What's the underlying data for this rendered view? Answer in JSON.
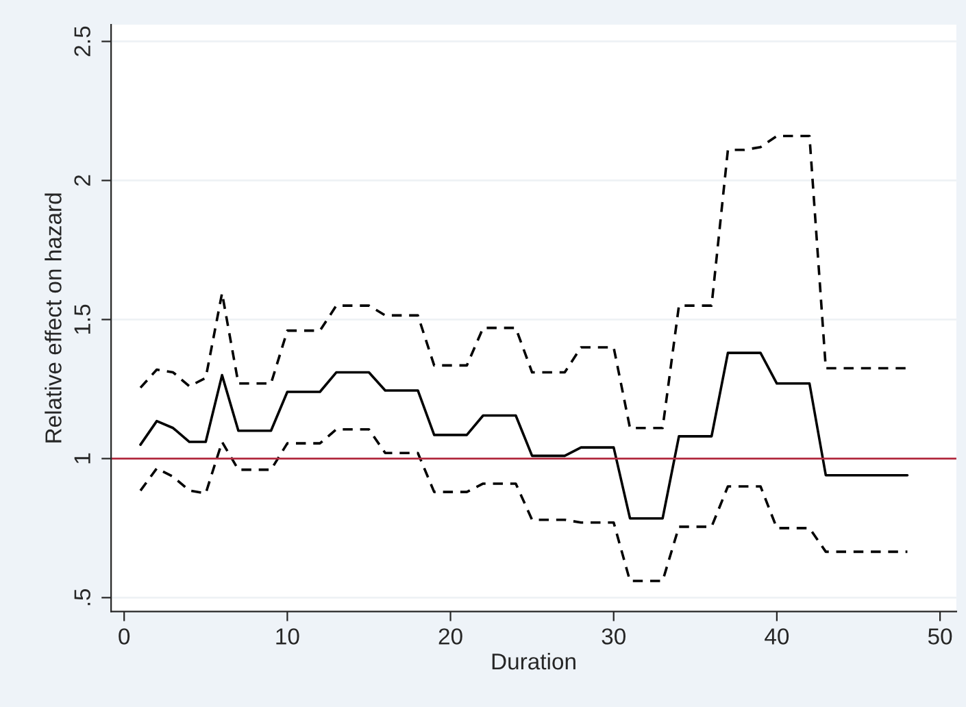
{
  "chart_data": {
    "type": "line",
    "xlabel": "Duration",
    "ylabel": "Relative effect on hazard",
    "x": [
      1,
      2,
      3,
      4,
      5,
      6,
      7,
      8,
      9,
      10,
      11,
      12,
      13,
      14,
      15,
      16,
      17,
      18,
      19,
      20,
      21,
      22,
      23,
      24,
      25,
      26,
      27,
      28,
      29,
      30,
      31,
      32,
      33,
      34,
      35,
      36,
      37,
      38,
      39,
      40,
      41,
      42,
      43,
      44,
      45,
      46,
      47,
      48
    ],
    "series": [
      {
        "color": "#000000",
        "line_style": "solid",
        "values": [
          1.05,
          1.135,
          1.11,
          1.06,
          1.06,
          1.3,
          1.1,
          1.1,
          1.1,
          1.24,
          1.24,
          1.24,
          1.31,
          1.31,
          1.31,
          1.245,
          1.245,
          1.245,
          1.085,
          1.085,
          1.085,
          1.155,
          1.155,
          1.155,
          1.01,
          1.01,
          1.01,
          1.04,
          1.04,
          1.04,
          0.785,
          0.785,
          0.785,
          1.08,
          1.08,
          1.08,
          1.38,
          1.38,
          1.38,
          1.27,
          1.27,
          1.27,
          0.94,
          0.94,
          0.94,
          0.94,
          0.94,
          0.94
        ]
      },
      {
        "color": "#000000",
        "line_style": "dashed",
        "values": [
          1.255,
          1.32,
          1.31,
          1.26,
          1.29,
          1.595,
          1.27,
          1.27,
          1.27,
          1.46,
          1.46,
          1.46,
          1.55,
          1.55,
          1.55,
          1.515,
          1.515,
          1.515,
          1.335,
          1.335,
          1.335,
          1.47,
          1.47,
          1.47,
          1.31,
          1.31,
          1.31,
          1.4,
          1.4,
          1.4,
          1.11,
          1.11,
          1.11,
          1.55,
          1.55,
          1.55,
          2.11,
          2.11,
          2.12,
          2.16,
          2.16,
          2.16,
          1.325,
          1.325,
          1.325,
          1.325,
          1.325,
          1.325
        ]
      },
      {
        "color": "#000000",
        "line_style": "dashed",
        "values": [
          0.885,
          0.965,
          0.935,
          0.885,
          0.875,
          1.06,
          0.96,
          0.96,
          0.96,
          1.055,
          1.055,
          1.055,
          1.105,
          1.105,
          1.105,
          1.02,
          1.02,
          1.02,
          0.88,
          0.88,
          0.88,
          0.91,
          0.91,
          0.91,
          0.78,
          0.78,
          0.78,
          0.77,
          0.77,
          0.77,
          0.56,
          0.56,
          0.56,
          0.755,
          0.755,
          0.755,
          0.9,
          0.9,
          0.9,
          0.75,
          0.75,
          0.75,
          0.665,
          0.665,
          0.665,
          0.665,
          0.665,
          0.665
        ]
      }
    ],
    "ref_lines": [
      {
        "axis": "y",
        "value": 1,
        "color": "#b22b3f",
        "line_style": "solid"
      }
    ],
    "xlim": [
      -0.8,
      51
    ],
    "ylim": [
      0.45,
      2.56
    ],
    "xticks": [
      0,
      10,
      20,
      30,
      40,
      50
    ],
    "yticks": [
      {
        "value": 0.5,
        "label": ".5"
      },
      1,
      1.5,
      2,
      2.5
    ],
    "grid": "y",
    "legend": false
  }
}
